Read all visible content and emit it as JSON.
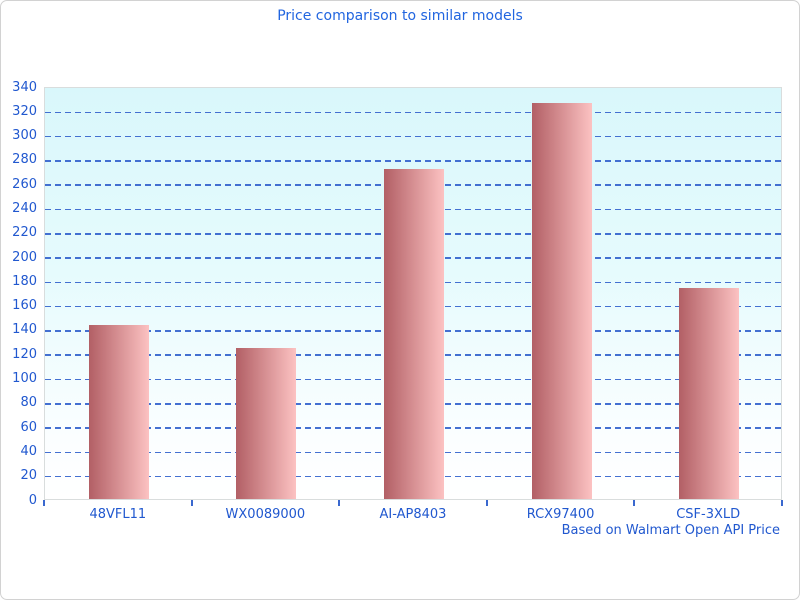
{
  "chart_data": {
    "type": "bar",
    "title": "Price comparison to similar models",
    "caption": "Based on Walmart Open API Price",
    "categories": [
      "48VFL11",
      "WX0089000",
      "AI-AP8403",
      "RCX97400",
      "CSF-3XLD"
    ],
    "values": [
      143,
      124,
      272,
      326,
      174
    ],
    "xlabel": "",
    "ylabel": "",
    "ylim": [
      0,
      340
    ],
    "ytick_step": 20,
    "yticks": [
      0,
      20,
      40,
      60,
      80,
      100,
      120,
      140,
      160,
      180,
      200,
      220,
      240,
      260,
      280,
      300,
      320,
      340
    ],
    "grid": "horizontal-dashed",
    "legend": "none",
    "colors": {
      "title_text": "#2165e0",
      "axis_text": "#2158cf",
      "gridline": "#3a68cf",
      "tick_mark": "#3a68cf",
      "bar_gradient_left": "#b25f65",
      "bar_gradient_right": "#fcc2c2",
      "plot_bg_top": "#d9f7fb",
      "plot_bg_bottom": "#ffffff",
      "plot_border": "#d9dddd",
      "page_border": "#d2d2d2"
    }
  }
}
